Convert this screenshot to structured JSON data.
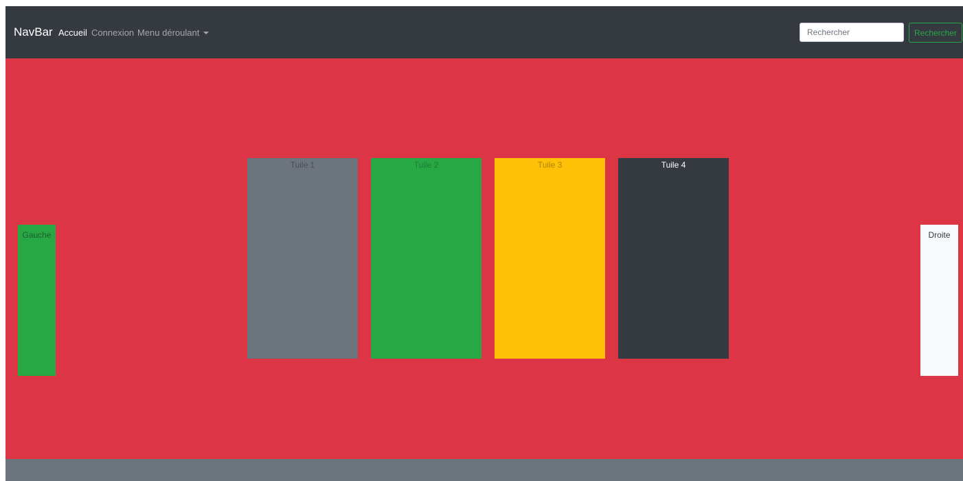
{
  "navbar": {
    "brand": "NavBar",
    "links": [
      {
        "label": "Accueil",
        "active": true
      },
      {
        "label": "Connexion",
        "active": false
      },
      {
        "label": "Menu déroulant",
        "active": false
      }
    ],
    "search": {
      "placeholder": "Rechercher",
      "value": "",
      "button_label": "Rechercher"
    }
  },
  "main": {
    "left_panel": {
      "label": "Gauche"
    },
    "right_panel": {
      "label": "Droite"
    },
    "tiles": [
      {
        "label": "Tuile 1"
      },
      {
        "label": "Tuile 2"
      },
      {
        "label": "Tuile 3"
      },
      {
        "label": "Tuile 4"
      }
    ]
  },
  "colors": {
    "navbar_bg": "#343a40",
    "main_bg": "#dc3545",
    "footer_bg": "#6c757d",
    "success": "#28a745",
    "warning": "#ffc107",
    "light": "#f8f9fa"
  }
}
